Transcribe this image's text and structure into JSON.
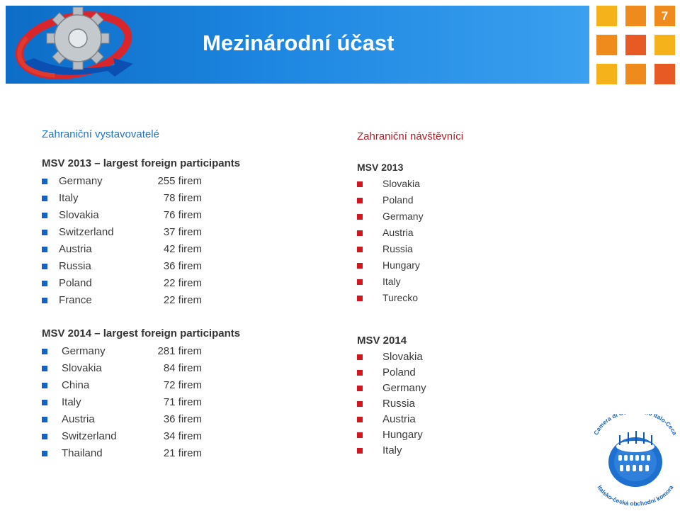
{
  "slide": {
    "title": "Mezinárodní účast",
    "page_number": "7"
  },
  "exhibitors": {
    "section_title": "Zahraniční vystavovatelé",
    "msv2013": {
      "header": "MSV 2013 – largest foreign participants",
      "rows": [
        {
          "country": "Germany",
          "count": "255 firem"
        },
        {
          "country": "Italy",
          "count": "78 firem"
        },
        {
          "country": "Slovakia",
          "count": "76 firem"
        },
        {
          "country": "Switzerland",
          "count": "37 firem"
        },
        {
          "country": "Austria",
          "count": "42 firem"
        },
        {
          "country": "Russia",
          "count": "36 firem"
        },
        {
          "country": "Poland",
          "count": "22 firem"
        },
        {
          "country": "France",
          "count": "22 firem"
        }
      ]
    },
    "msv2014": {
      "header": "MSV 2014 – largest foreign participants",
      "rows": [
        {
          "country": "Germany",
          "count": "281 firem"
        },
        {
          "country": "Slovakia",
          "count": "84 firem"
        },
        {
          "country": "China",
          "count": "72 firem"
        },
        {
          "country": "Italy",
          "count": "71 firem"
        },
        {
          "country": "Austria",
          "count": "36 firem"
        },
        {
          "country": "Switzerland",
          "count": "34 firem"
        },
        {
          "country": "Thailand",
          "count": "21 firem"
        }
      ]
    }
  },
  "visitors": {
    "section_title": "Zahraniční návštěvníci",
    "msv2013": {
      "header": "MSV 2013",
      "items": [
        "Slovakia",
        "Poland",
        "Germany",
        "Austria",
        "Russia",
        "Hungary",
        "Italy",
        "Turecko"
      ]
    },
    "msv2014": {
      "header": "MSV 2014",
      "items": [
        "Slovakia",
        "Poland",
        "Germany",
        "Russia",
        "Austria",
        "Hungary",
        "Italy"
      ]
    }
  },
  "logos": {
    "chamber_logo_text_top": "Camera di Commercio Italo-Ceca",
    "chamber_logo_text_bottom": "Italsko-česká obchodní komora"
  },
  "colors": {
    "header_blue": "#1677d4",
    "section_blue": "#1f74c9",
    "section_red": "#b0202a",
    "bullet_blue": "#1660c4",
    "bullet_red": "#d3151e",
    "tile_yellow": "#f5b21a",
    "tile_orange": "#ef8a1c",
    "tile_red_orange": "#e85a23"
  },
  "icons": {
    "main_logo": "gear-logo-icon",
    "bullet_exhibitors": "blue-square-bullet-icon",
    "bullet_visitors": "red-square-bullet-icon",
    "chamber_logo": "colosseum-logo-icon"
  }
}
